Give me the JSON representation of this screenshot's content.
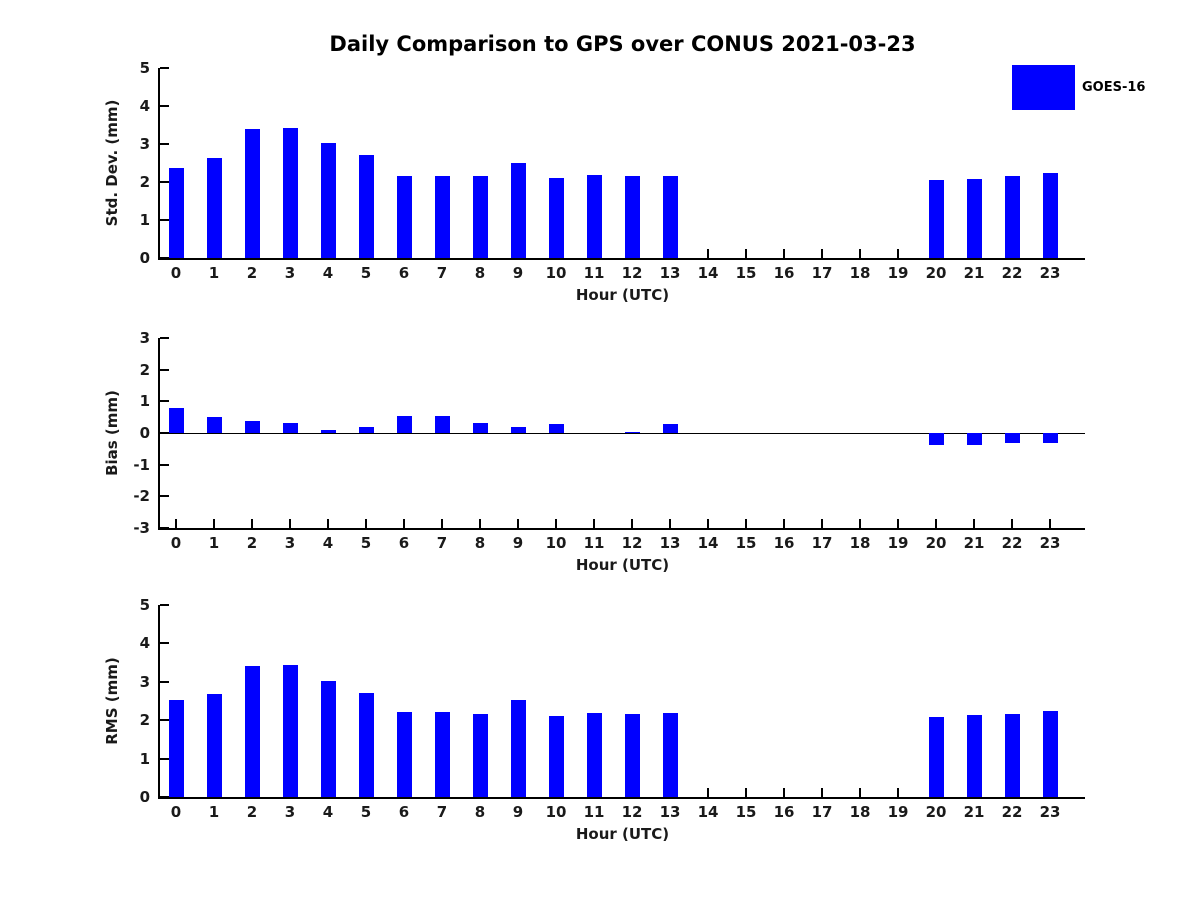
{
  "title": "Daily Comparison to GPS over CONUS 2021-03-23",
  "legend": {
    "label": "GOES-16",
    "color": "#0000ff",
    "position": "top-right"
  },
  "chart_data": [
    {
      "type": "bar",
      "name": "std-dev",
      "ylabel": "Std. Dev. (mm)",
      "xlabel": "Hour (UTC)",
      "ylim": [
        0,
        5
      ],
      "yticks": [
        0,
        1,
        2,
        3,
        4,
        5
      ],
      "grid": false,
      "categories": [
        "0",
        "1",
        "2",
        "3",
        "4",
        "5",
        "6",
        "7",
        "8",
        "9",
        "10",
        "11",
        "12",
        "13",
        "14",
        "15",
        "16",
        "17",
        "18",
        "19",
        "20",
        "21",
        "22",
        "23"
      ],
      "series_name": "GOES-16",
      "values": [
        2.38,
        2.64,
        3.4,
        3.43,
        3.03,
        2.72,
        2.15,
        2.15,
        2.15,
        2.51,
        2.1,
        2.19,
        2.15,
        2.17,
        null,
        null,
        null,
        null,
        null,
        null,
        2.06,
        2.09,
        2.15,
        2.25
      ]
    },
    {
      "type": "bar",
      "name": "bias",
      "ylabel": "Bias (mm)",
      "xlabel": "Hour (UTC)",
      "ylim": [
        -3,
        3
      ],
      "yticks": [
        -3,
        -2,
        -1,
        0,
        1,
        2,
        3
      ],
      "grid": false,
      "categories": [
        "0",
        "1",
        "2",
        "3",
        "4",
        "5",
        "6",
        "7",
        "8",
        "9",
        "10",
        "11",
        "12",
        "13",
        "14",
        "15",
        "16",
        "17",
        "18",
        "19",
        "20",
        "21",
        "22",
        "23"
      ],
      "series_name": "GOES-16",
      "values": [
        0.8,
        0.5,
        0.37,
        0.33,
        0.09,
        0.18,
        0.55,
        0.54,
        0.32,
        0.2,
        0.3,
        0.0,
        0.04,
        0.27,
        null,
        null,
        null,
        null,
        null,
        null,
        -0.38,
        -0.37,
        -0.3,
        -0.31
      ]
    },
    {
      "type": "bar",
      "name": "rms",
      "ylabel": "RMS (mm)",
      "xlabel": "Hour (UTC)",
      "ylim": [
        0,
        5
      ],
      "yticks": [
        0,
        1,
        2,
        3,
        4,
        5
      ],
      "grid": false,
      "categories": [
        "0",
        "1",
        "2",
        "3",
        "4",
        "5",
        "6",
        "7",
        "8",
        "9",
        "10",
        "11",
        "12",
        "13",
        "14",
        "15",
        "16",
        "17",
        "18",
        "19",
        "20",
        "21",
        "22",
        "23"
      ],
      "series_name": "GOES-16",
      "values": [
        2.52,
        2.67,
        3.4,
        3.43,
        3.01,
        2.7,
        2.21,
        2.21,
        2.16,
        2.52,
        2.1,
        2.18,
        2.15,
        2.18,
        null,
        null,
        null,
        null,
        null,
        null,
        2.09,
        2.13,
        2.16,
        2.25
      ]
    }
  ]
}
